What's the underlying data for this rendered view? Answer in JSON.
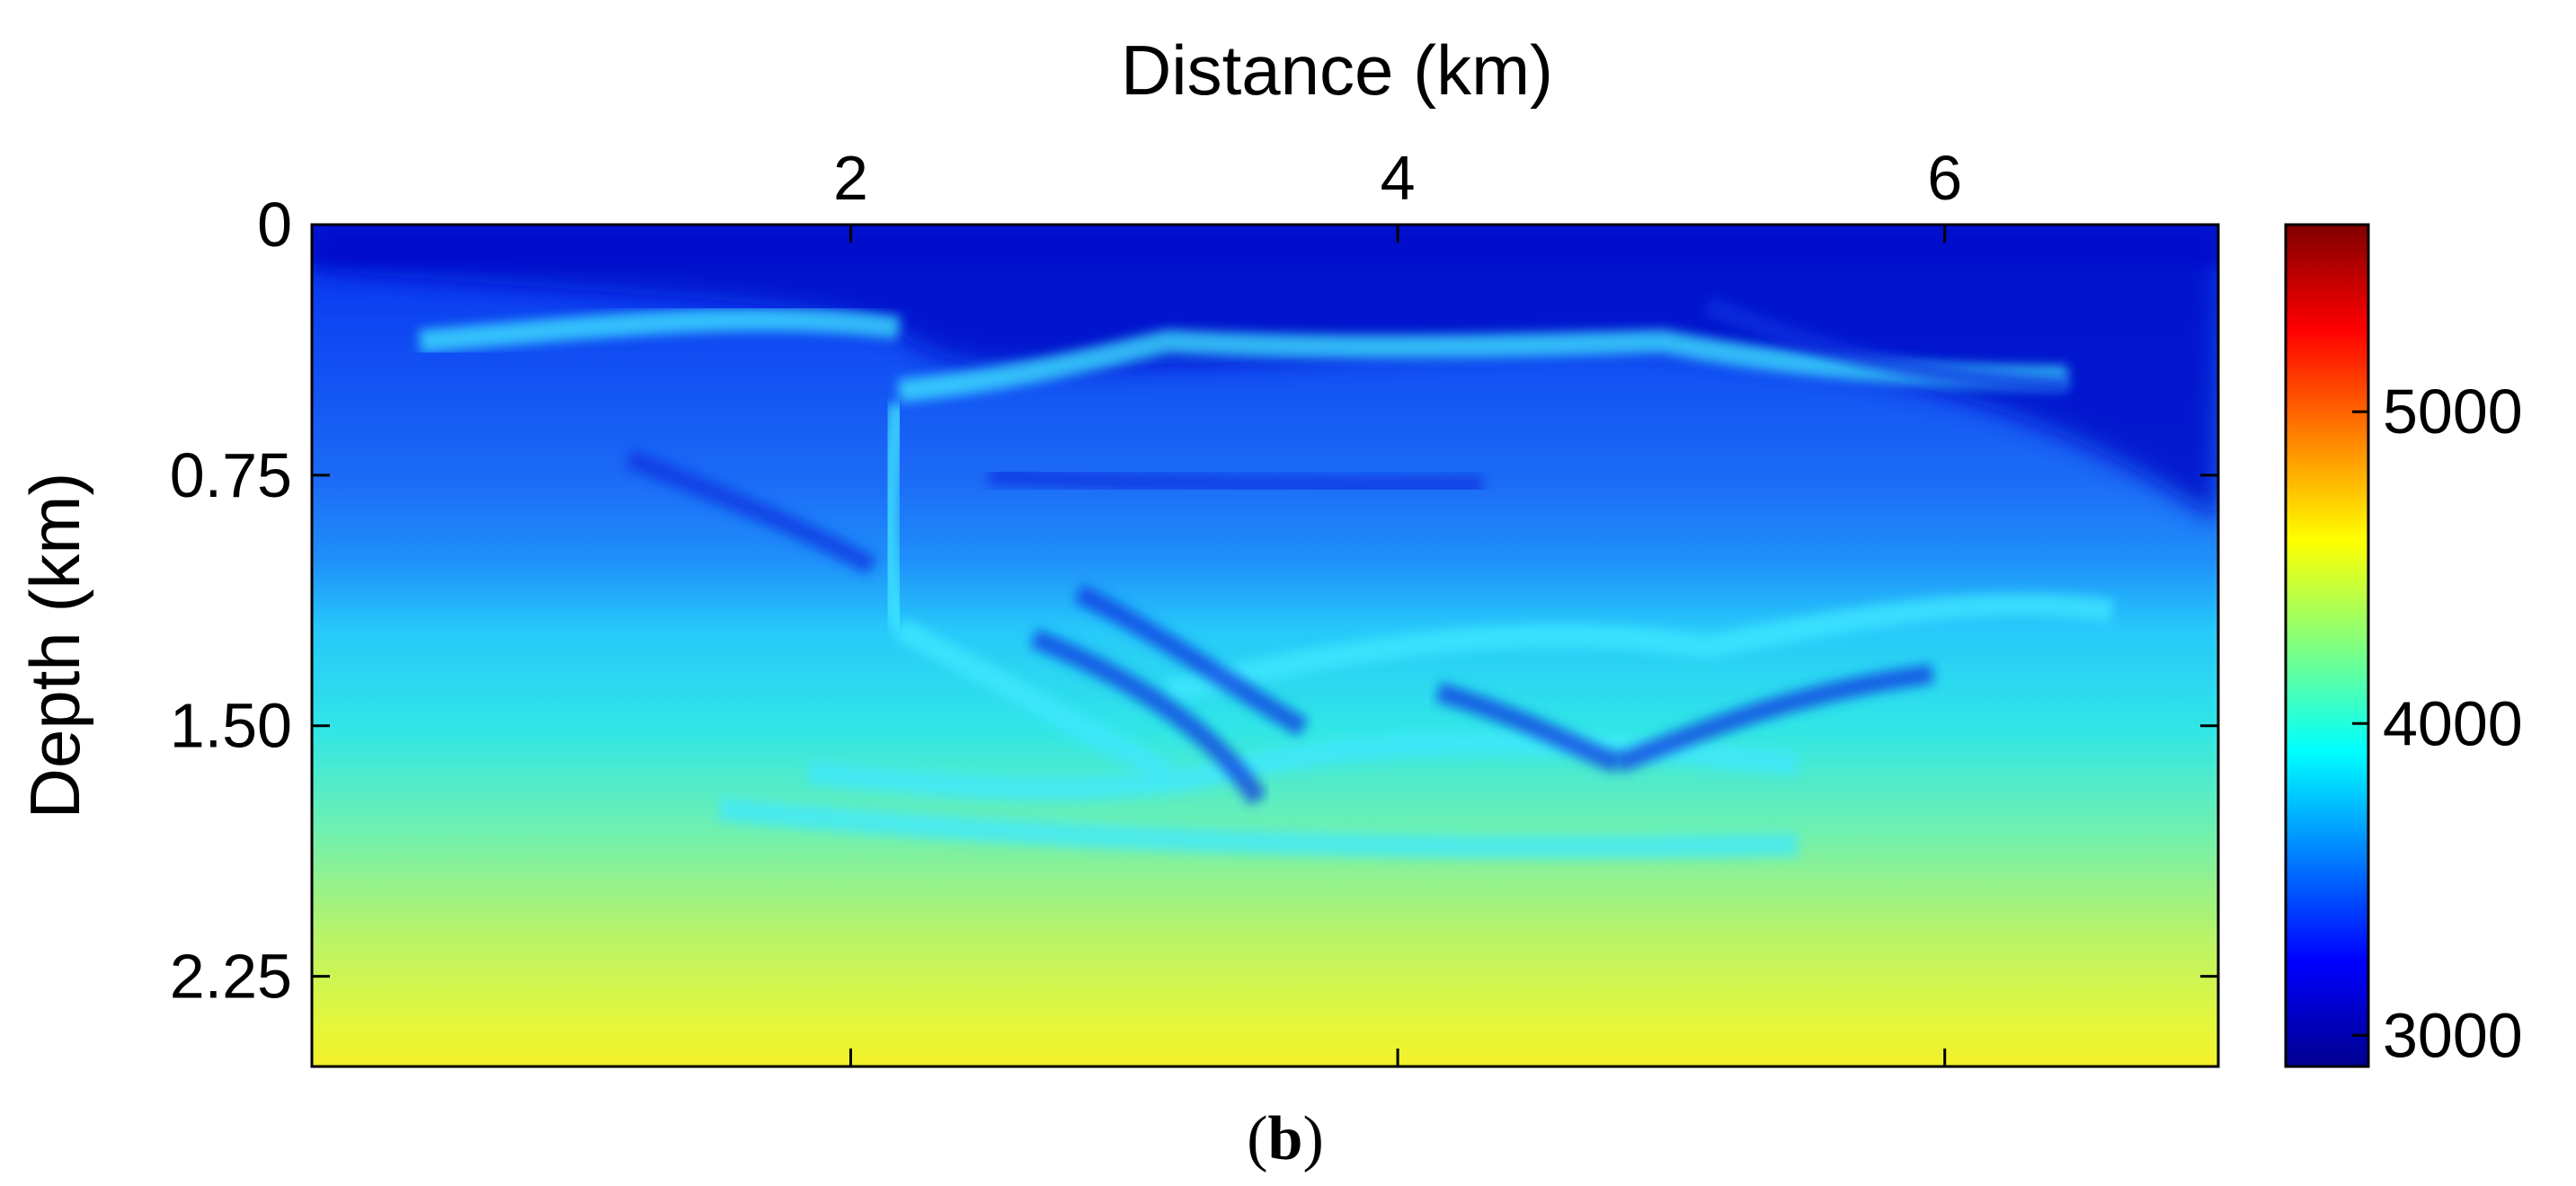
{
  "chart_data": {
    "type": "heatmap",
    "xlabel": "Distance (km)",
    "ylabel": "Depth (km)",
    "x_ticks": [
      "2",
      "4",
      "6"
    ],
    "x_tick_values": [
      2,
      4,
      6
    ],
    "y_ticks": [
      "0",
      "0.75",
      "1.50",
      "2.25"
    ],
    "y_tick_values": [
      0,
      0.75,
      1.5,
      2.25
    ],
    "xlim": [
      0.03,
      7.0
    ],
    "ylim": [
      0,
      2.52
    ],
    "x_axis_position": "top",
    "y_reversed": true,
    "colormap": "jet",
    "colorbar": {
      "ticks": [
        "3000",
        "4000",
        "5000"
      ],
      "tick_values": [
        3000,
        4000,
        5000
      ],
      "range": [
        2900,
        5600
      ],
      "position": "right"
    },
    "velocity_profile": {
      "depth": [
        0,
        0.12,
        0.3,
        0.5,
        0.75,
        1.0,
        1.25,
        1.5,
        1.75,
        2.0,
        2.25,
        2.5
      ],
      "value": [
        3000,
        3050,
        3300,
        3450,
        3550,
        3700,
        3850,
        3950,
        4100,
        4250,
        4400,
        4550
      ]
    },
    "grid": false,
    "caption_label": "b"
  },
  "colors": {
    "jet_stops": [
      "#00008f",
      "#0000ff",
      "#00ffff",
      "#ffff00",
      "#ff0000",
      "#800000"
    ]
  }
}
